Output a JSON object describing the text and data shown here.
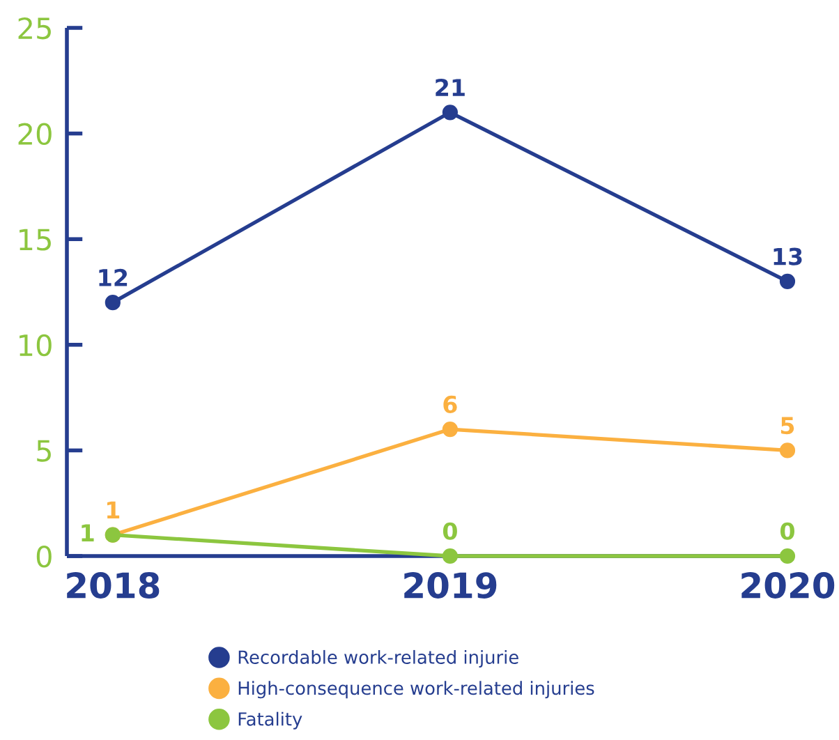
{
  "chart_data": {
    "type": "line",
    "categories": [
      "2018",
      "2019",
      "2020"
    ],
    "series": [
      {
        "name": "Recordable work-related injurie",
        "color": "#253d8f",
        "values": [
          12,
          21,
          13
        ]
      },
      {
        "name": "High-consequence work-related injuries",
        "color": "#fbb040",
        "values": [
          1,
          6,
          5
        ]
      },
      {
        "name": "Fatality",
        "color": "#8cc63f",
        "values": [
          1,
          0,
          0
        ]
      }
    ],
    "ylim": [
      0,
      25
    ],
    "yticks": [
      0,
      5,
      10,
      15,
      20,
      25
    ],
    "data_labels": true,
    "marker": "circle",
    "line_style": "solid",
    "legend": "bottom",
    "grid": false
  }
}
